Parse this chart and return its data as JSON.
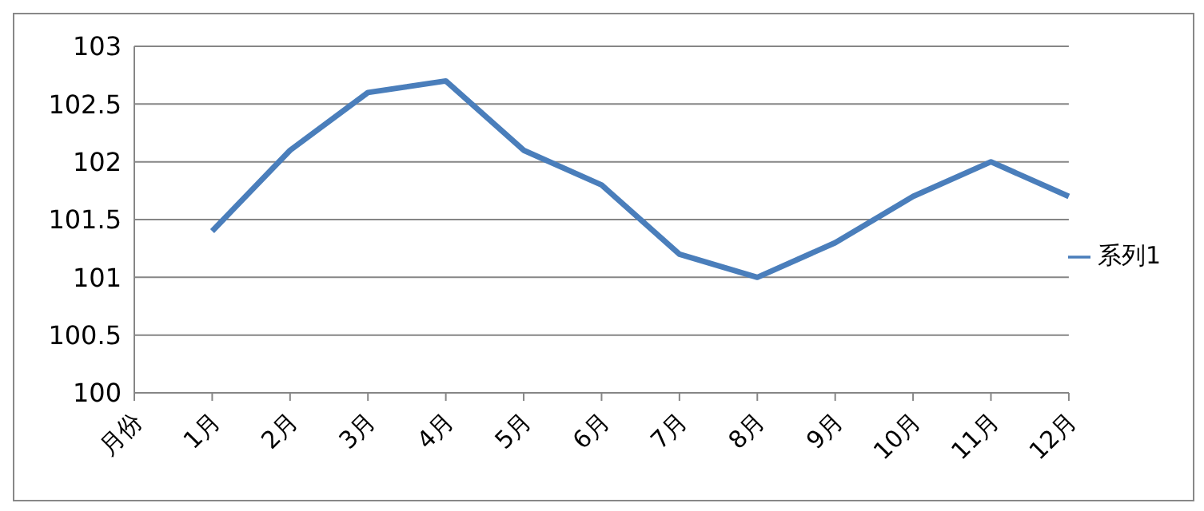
{
  "chart_data": {
    "type": "line",
    "categories": [
      "月份",
      "1月",
      "2月",
      "3月",
      "4月",
      "5月",
      "6月",
      "7月",
      "8月",
      "9月",
      "10月",
      "11月",
      "12月"
    ],
    "series": [
      {
        "name": "系列1",
        "color": "#4a7ebb",
        "values": [
          null,
          101.4,
          102.1,
          102.6,
          102.7,
          102.1,
          101.8,
          101.2,
          101.0,
          101.3,
          101.7,
          102.0,
          101.7
        ]
      }
    ],
    "ylim": [
      100,
      103
    ],
    "yticks": [
      100,
      100.5,
      101,
      101.5,
      102,
      102.5,
      103
    ],
    "grid": "y",
    "legend": "right",
    "marker": "none"
  }
}
